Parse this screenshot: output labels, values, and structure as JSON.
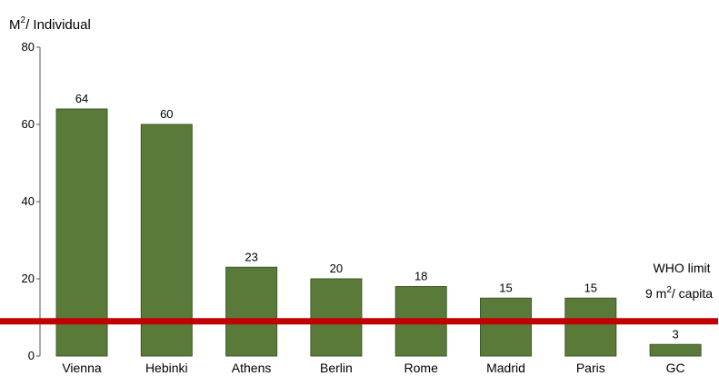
{
  "chart_data": {
    "type": "bar",
    "ylabel": "M",
    "ylabel_superscript": "2",
    "ylabel_suffix": "/ Individual",
    "categories": [
      "Vienna",
      "Hebinki",
      "Athens",
      "Berlin",
      "Rome",
      "Madrid",
      "Paris",
      "GC"
    ],
    "values": [
      64,
      60,
      23,
      20,
      18,
      15,
      15,
      3
    ],
    "data_labels": [
      "64",
      "60",
      "23",
      "20",
      "18",
      "15",
      "15",
      "3"
    ],
    "ylim": [
      0,
      80
    ],
    "yticks": [
      0,
      20,
      40,
      60,
      80
    ],
    "grid": false,
    "bar_color": "#5a7a3a",
    "reference_line": {
      "value": 9,
      "color": "#c00000",
      "label_line1": "WHO limit",
      "label_line2_prefix": "9 m",
      "label_line2_superscript": "2",
      "label_line2_suffix": "/ capita"
    }
  }
}
